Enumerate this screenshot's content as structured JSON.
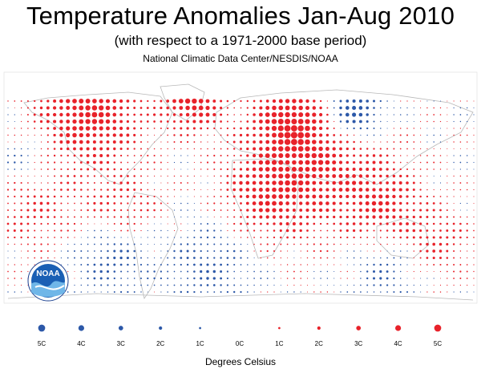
{
  "title": "Temperature Anomalies Jan-Aug 2010",
  "subtitle": "(with respect to a 1971-2000 base period)",
  "credit": "National Climatic Data Center/NESDIS/NOAA",
  "units_label": "Degrees Celsius",
  "logo_text": "NOAA",
  "colors": {
    "warm": "#e8222a",
    "cool": "#2c58a8",
    "coast": "#b8b8b8"
  },
  "legend": [
    {
      "label": "5C",
      "value": -5
    },
    {
      "label": "4C",
      "value": -4
    },
    {
      "label": "3C",
      "value": -3
    },
    {
      "label": "2C",
      "value": -2
    },
    {
      "label": "1C",
      "value": -1
    },
    {
      "label": "0C",
      "value": 0
    },
    {
      "label": "1C",
      "value": 1
    },
    {
      "label": "2C",
      "value": 2
    },
    {
      "label": "3C",
      "value": 3
    },
    {
      "label": "4C",
      "value": 4
    },
    {
      "label": "5C",
      "value": 5
    }
  ]
}
